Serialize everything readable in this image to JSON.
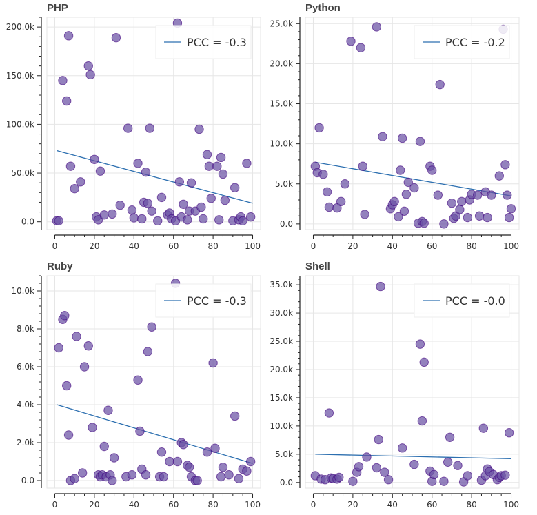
{
  "colors": {
    "point_fill": "#6a51a3",
    "point_stroke": "#3f007d",
    "trend_line": "#2c6fb0",
    "grid": "#e6e6e6",
    "axis": "#222222"
  },
  "chart_data": [
    {
      "type": "scatter",
      "title": "PHP",
      "legend_label": "PCC = -0.3",
      "legend_position": "top-right",
      "grid": true,
      "xlim": [
        -4,
        104
      ],
      "ylim": [
        -8000,
        210000
      ],
      "x_ticks": [
        0,
        20,
        40,
        60,
        80,
        100
      ],
      "x_tick_labels": [
        "0",
        "20",
        "40",
        "60",
        "80",
        "100"
      ],
      "y_ticks": [
        0,
        50000,
        100000,
        150000,
        200000
      ],
      "y_tick_labels": [
        "0.0",
        "50.0k",
        "100.0k",
        "150.0k",
        "200.0k"
      ],
      "trend": [
        [
          1,
          73000
        ],
        [
          100,
          19000
        ]
      ],
      "points": [
        [
          1,
          1000
        ],
        [
          2,
          1000
        ],
        [
          4,
          145000
        ],
        [
          6,
          124000
        ],
        [
          7,
          191000
        ],
        [
          8,
          57000
        ],
        [
          10,
          34000
        ],
        [
          13,
          41000
        ],
        [
          17,
          160000
        ],
        [
          18,
          151000
        ],
        [
          20,
          64000
        ],
        [
          21,
          5000
        ],
        [
          22,
          2000
        ],
        [
          23,
          52000
        ],
        [
          25,
          7000
        ],
        [
          29,
          8000
        ],
        [
          31,
          189000
        ],
        [
          33,
          17000
        ],
        [
          37,
          96000
        ],
        [
          39,
          12000
        ],
        [
          40,
          4000
        ],
        [
          42,
          60000
        ],
        [
          44,
          3000
        ],
        [
          45,
          20000
        ],
        [
          46,
          51000
        ],
        [
          47,
          19000
        ],
        [
          48,
          96000
        ],
        [
          49,
          11000
        ],
        [
          52,
          1000
        ],
        [
          54,
          25000
        ],
        [
          57,
          7000
        ],
        [
          58,
          9000
        ],
        [
          59,
          3000
        ],
        [
          61,
          1000
        ],
        [
          62,
          204000
        ],
        [
          63,
          41000
        ],
        [
          64,
          5000
        ],
        [
          65,
          18000
        ],
        [
          67,
          2000
        ],
        [
          68,
          11000
        ],
        [
          69,
          40000
        ],
        [
          71,
          11000
        ],
        [
          73,
          95000
        ],
        [
          74,
          15000
        ],
        [
          75,
          3000
        ],
        [
          77,
          69000
        ],
        [
          78,
          57000
        ],
        [
          79,
          24000
        ],
        [
          82,
          57000
        ],
        [
          83,
          2000
        ],
        [
          84,
          66000
        ],
        [
          85,
          49000
        ],
        [
          86,
          22000
        ],
        [
          90,
          1000
        ],
        [
          91,
          35000
        ],
        [
          93,
          2000
        ],
        [
          94,
          5000
        ],
        [
          95,
          1000
        ],
        [
          97,
          60000
        ],
        [
          99,
          5000
        ]
      ]
    },
    {
      "type": "scatter",
      "title": "Python",
      "legend_label": "PCC = -0.2",
      "legend_position": "top-right",
      "grid": true,
      "xlim": [
        -4,
        104
      ],
      "ylim": [
        -700,
        25800
      ],
      "x_ticks": [
        0,
        20,
        40,
        60,
        80,
        100
      ],
      "x_tick_labels": [
        "0",
        "20",
        "40",
        "60",
        "80",
        "100"
      ],
      "y_ticks": [
        0,
        5000,
        10000,
        15000,
        20000,
        25000
      ],
      "y_tick_labels": [
        "0.0",
        "5.0k",
        "10.0k",
        "15.0k",
        "20.0k",
        "25.0k"
      ],
      "trend": [
        [
          1,
          7700
        ],
        [
          100,
          3500
        ]
      ],
      "points": [
        [
          1,
          7200
        ],
        [
          2,
          6400
        ],
        [
          3,
          12000
        ],
        [
          5,
          6200
        ],
        [
          7,
          4000
        ],
        [
          8,
          2100
        ],
        [
          12,
          2000
        ],
        [
          14,
          2800
        ],
        [
          16,
          5000
        ],
        [
          19,
          22800
        ],
        [
          24,
          22000
        ],
        [
          25,
          7200
        ],
        [
          26,
          1200
        ],
        [
          32,
          24600
        ],
        [
          35,
          10900
        ],
        [
          39,
          1900
        ],
        [
          40,
          2400
        ],
        [
          41,
          2800
        ],
        [
          43,
          900
        ],
        [
          44,
          6700
        ],
        [
          45,
          10700
        ],
        [
          46,
          1600
        ],
        [
          47,
          3700
        ],
        [
          48,
          5200
        ],
        [
          51,
          4500
        ],
        [
          53,
          100
        ],
        [
          54,
          10300
        ],
        [
          55,
          300
        ],
        [
          56,
          100
        ],
        [
          59,
          7200
        ],
        [
          60,
          6700
        ],
        [
          63,
          3600
        ],
        [
          64,
          17400
        ],
        [
          66,
          0
        ],
        [
          70,
          2600
        ],
        [
          71,
          700
        ],
        [
          72,
          1000
        ],
        [
          74,
          1800
        ],
        [
          75,
          2800
        ],
        [
          78,
          800
        ],
        [
          79,
          3000
        ],
        [
          80,
          3700
        ],
        [
          83,
          3600
        ],
        [
          84,
          1000
        ],
        [
          87,
          4000
        ],
        [
          88,
          800
        ],
        [
          90,
          3600
        ],
        [
          94,
          6000
        ],
        [
          96,
          24300
        ],
        [
          97,
          7400
        ],
        [
          98,
          3600
        ],
        [
          99,
          800
        ],
        [
          100,
          1900
        ]
      ]
    },
    {
      "type": "scatter",
      "title": "Ruby",
      "legend_label": "PCC = -0.3",
      "legend_position": "top-right",
      "grid": true,
      "xlim": [
        -4,
        104
      ],
      "ylim": [
        -400,
        10800
      ],
      "x_ticks": [
        0,
        20,
        40,
        60,
        80,
        100
      ],
      "x_tick_labels": [
        "0",
        "20",
        "40",
        "60",
        "80",
        "100"
      ],
      "y_ticks": [
        0,
        2000,
        4000,
        6000,
        8000,
        10000
      ],
      "y_tick_labels": [
        "0.0",
        "2.0k",
        "4.0k",
        "6.0k",
        "8.0k",
        "10.0k"
      ],
      "trend": [
        [
          1,
          4000
        ],
        [
          100,
          900
        ]
      ],
      "points": [
        [
          2,
          7000
        ],
        [
          4,
          8500
        ],
        [
          5,
          8700
        ],
        [
          6,
          5000
        ],
        [
          7,
          2400
        ],
        [
          8,
          0
        ],
        [
          10,
          100
        ],
        [
          11,
          7600
        ],
        [
          14,
          400
        ],
        [
          15,
          6000
        ],
        [
          17,
          7100
        ],
        [
          19,
          2800
        ],
        [
          22,
          300
        ],
        [
          23,
          200
        ],
        [
          24,
          300
        ],
        [
          25,
          1800
        ],
        [
          26,
          200
        ],
        [
          27,
          3700
        ],
        [
          28,
          300
        ],
        [
          29,
          0
        ],
        [
          30,
          1200
        ],
        [
          36,
          200
        ],
        [
          39,
          300
        ],
        [
          42,
          5300
        ],
        [
          43,
          2600
        ],
        [
          44,
          600
        ],
        [
          46,
          300
        ],
        [
          47,
          6800
        ],
        [
          49,
          8100
        ],
        [
          53,
          200
        ],
        [
          54,
          1500
        ],
        [
          55,
          200
        ],
        [
          58,
          1000
        ],
        [
          61,
          10400
        ],
        [
          62,
          1000
        ],
        [
          64,
          2000
        ],
        [
          65,
          1900
        ],
        [
          67,
          800
        ],
        [
          68,
          700
        ],
        [
          69,
          200
        ],
        [
          71,
          0
        ],
        [
          72,
          0
        ],
        [
          77,
          1500
        ],
        [
          80,
          6200
        ],
        [
          81,
          1700
        ],
        [
          84,
          200
        ],
        [
          85,
          700
        ],
        [
          88,
          300
        ],
        [
          91,
          3400
        ],
        [
          93,
          100
        ],
        [
          95,
          600
        ],
        [
          97,
          500
        ],
        [
          99,
          1000
        ]
      ]
    },
    {
      "type": "scatter",
      "title": "Shell",
      "legend_label": "PCC = -0.0",
      "legend_position": "top-right",
      "grid": true,
      "xlim": [
        -4,
        104
      ],
      "ylim": [
        -1000,
        36600
      ],
      "x_ticks": [
        0,
        20,
        40,
        60,
        80,
        100
      ],
      "x_tick_labels": [
        "0",
        "20",
        "40",
        "60",
        "80",
        "100"
      ],
      "y_ticks": [
        0,
        5000,
        10000,
        15000,
        20000,
        25000,
        30000,
        35000
      ],
      "y_tick_labels": [
        "0.0",
        "5.0k",
        "10.0k",
        "15.0k",
        "20.0k",
        "25.0k",
        "30.0k",
        "35.0k"
      ],
      "trend": [
        [
          1,
          5000
        ],
        [
          100,
          4200
        ]
      ],
      "points": [
        [
          1,
          1200
        ],
        [
          4,
          600
        ],
        [
          6,
          500
        ],
        [
          8,
          12300
        ],
        [
          9,
          800
        ],
        [
          10,
          700
        ],
        [
          12,
          600
        ],
        [
          13,
          900
        ],
        [
          20,
          200
        ],
        [
          22,
          1800
        ],
        [
          23,
          2800
        ],
        [
          27,
          4500
        ],
        [
          32,
          2600
        ],
        [
          33,
          7600
        ],
        [
          34,
          34700
        ],
        [
          36,
          1800
        ],
        [
          38,
          500
        ],
        [
          45,
          6100
        ],
        [
          51,
          3200
        ],
        [
          54,
          24500
        ],
        [
          55,
          10900
        ],
        [
          56,
          21300
        ],
        [
          59,
          2000
        ],
        [
          60,
          200
        ],
        [
          61,
          1400
        ],
        [
          66,
          200
        ],
        [
          68,
          3600
        ],
        [
          69,
          8000
        ],
        [
          73,
          3000
        ],
        [
          76,
          100
        ],
        [
          78,
          1200
        ],
        [
          85,
          400
        ],
        [
          86,
          9600
        ],
        [
          87,
          1200
        ],
        [
          88,
          2400
        ],
        [
          89,
          1900
        ],
        [
          91,
          1400
        ],
        [
          93,
          500
        ],
        [
          94,
          900
        ],
        [
          95,
          1200
        ],
        [
          97,
          1300
        ],
        [
          99,
          8800
        ]
      ]
    }
  ]
}
